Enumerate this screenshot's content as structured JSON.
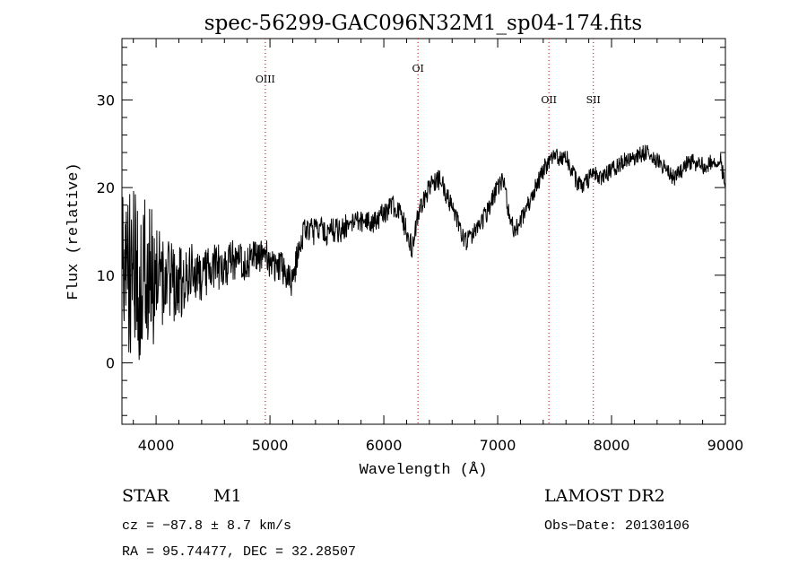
{
  "chart_data": {
    "type": "line",
    "title": "spec-56299-GAC096N32M1_sp04-174.fits",
    "xlabel": "Wavelength (Å)",
    "ylabel": "Flux (relative)",
    "xlim": [
      3700,
      9000
    ],
    "ylim": [
      -7,
      37
    ],
    "x_ticks": [
      4000,
      5000,
      6000,
      7000,
      8000,
      9000
    ],
    "y_ticks": [
      0,
      10,
      20,
      30
    ],
    "grid": false,
    "line_color": "#000000",
    "marker_color": "#d02020",
    "lines": [
      {
        "label": "OIII",
        "x": 4959
      },
      {
        "label": "OI",
        "x": 6300
      },
      {
        "label": "OII",
        "x": 7450
      },
      {
        "label": "SII",
        "x": 7840
      }
    ],
    "envelope": {
      "x": [
        3700,
        3750,
        3800,
        3850,
        3900,
        3950,
        4000,
        4100,
        4200,
        4300,
        4400,
        4500,
        4600,
        4700,
        4800,
        4900,
        4960,
        5000,
        5100,
        5150,
        5200,
        5250,
        5300,
        5400,
        5500,
        5600,
        5700,
        5800,
        5900,
        6000,
        6100,
        6150,
        6200,
        6250,
        6300,
        6400,
        6500,
        6550,
        6600,
        6700,
        6750,
        6800,
        6900,
        7000,
        7050,
        7100,
        7150,
        7200,
        7300,
        7400,
        7450,
        7500,
        7600,
        7700,
        7750,
        7800,
        7850,
        7900,
        8000,
        8100,
        8200,
        8300,
        8400,
        8500,
        8550,
        8600,
        8700,
        8800,
        8900,
        8950,
        9000
      ],
      "y": [
        12,
        11,
        10,
        9,
        10,
        10,
        9,
        9,
        9,
        10,
        10,
        11,
        11,
        12,
        11.5,
        12,
        13,
        11,
        11,
        10,
        9,
        13,
        15,
        15,
        15,
        15,
        16,
        16,
        16,
        17,
        18,
        17,
        15,
        13,
        17,
        20,
        21,
        19,
        18,
        14,
        14,
        15,
        17,
        20,
        21,
        17,
        15,
        16,
        19,
        22,
        23,
        23.5,
        23.5,
        20.5,
        20,
        21,
        21.5,
        21,
        22,
        23,
        23.5,
        24,
        23,
        22,
        21,
        22,
        23,
        22.5,
        23,
        23.5,
        20
      ]
    },
    "noise": {
      "x": [
        3700,
        3900,
        4100,
        4400,
        5000,
        6000,
        7000,
        8000,
        9000
      ],
      "amplitude": [
        11,
        9,
        5,
        3,
        1.8,
        1.3,
        1.1,
        1.0,
        1.0
      ]
    },
    "samples": 1400,
    "seed": 56299
  },
  "info": {
    "class_label": "STAR",
    "subclass": "M1",
    "cz": "cz = −87.8 ± 8.7 km/s",
    "radec": "RA =  95.74477, DEC =  32.28507",
    "survey": "LAMOST DR2",
    "obs_date": "Obs−Date: 20130106"
  }
}
